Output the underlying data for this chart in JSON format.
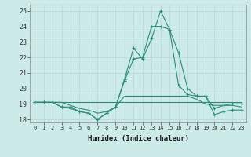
{
  "xlabel": "Humidex (Indice chaleur)",
  "x": [
    0,
    1,
    2,
    3,
    4,
    5,
    6,
    7,
    8,
    9,
    10,
    11,
    12,
    13,
    14,
    15,
    16,
    17,
    18,
    19,
    20,
    21,
    22,
    23
  ],
  "line1": [
    19.1,
    19.1,
    19.1,
    18.8,
    18.8,
    18.5,
    18.4,
    18.0,
    18.4,
    18.8,
    20.6,
    22.6,
    21.9,
    23.2,
    25.0,
    23.8,
    20.2,
    19.6,
    19.5,
    19.5,
    18.3,
    18.5,
    18.6,
    18.6
  ],
  "line2": [
    19.1,
    19.1,
    19.1,
    18.8,
    18.7,
    18.5,
    18.4,
    18.0,
    18.4,
    18.8,
    20.5,
    21.9,
    22.0,
    24.0,
    24.0,
    23.8,
    22.3,
    20.0,
    19.5,
    19.5,
    18.7,
    18.9,
    19.0,
    19.0
  ],
  "line3": [
    19.1,
    19.1,
    19.1,
    19.1,
    18.9,
    18.7,
    18.6,
    18.4,
    18.5,
    18.8,
    19.5,
    19.5,
    19.5,
    19.5,
    19.5,
    19.5,
    19.5,
    19.5,
    19.3,
    19.0,
    18.9,
    18.9,
    18.9,
    18.8
  ],
  "line4": [
    19.1,
    19.1,
    19.1,
    19.1,
    19.1,
    19.1,
    19.1,
    19.1,
    19.1,
    19.1,
    19.1,
    19.1,
    19.1,
    19.1,
    19.1,
    19.1,
    19.1,
    19.1,
    19.1,
    19.1,
    19.1,
    19.1,
    19.1,
    19.1
  ],
  "line_color": "#2e8b7a",
  "bg_color": "#cceae8",
  "grid_color": "#b8d8d5",
  "ylim": [
    17.8,
    25.4
  ],
  "yticks": [
    18,
    19,
    20,
    21,
    22,
    23,
    24,
    25
  ],
  "xlim": [
    -0.5,
    23.5
  ],
  "figsize": [
    3.2,
    2.0
  ],
  "dpi": 100
}
